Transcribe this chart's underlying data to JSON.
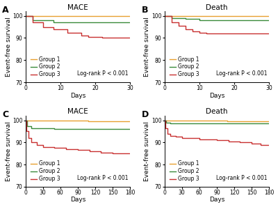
{
  "panels": [
    {
      "label": "A",
      "title": "MACE",
      "xmax": 30,
      "xticks": [
        0,
        10,
        20,
        30
      ],
      "groups": [
        {
          "name": "Group 1",
          "color": "#E8A030",
          "x": [
            0,
            30
          ],
          "y": [
            100,
            100
          ]
        },
        {
          "name": "Group 2",
          "color": "#3A8A3A",
          "x": [
            0,
            2,
            2,
            8,
            8,
            30
          ],
          "y": [
            100,
            100,
            98,
            98,
            97,
            97
          ]
        },
        {
          "name": "Group 3",
          "color": "#C83030",
          "x": [
            0,
            2,
            2,
            5,
            5,
            8,
            8,
            12,
            12,
            16,
            16,
            18,
            18,
            22,
            22,
            30
          ],
          "y": [
            100,
            100,
            97,
            97,
            95,
            95,
            94,
            94,
            92.5,
            92.5,
            91,
            91,
            90.5,
            90.5,
            90,
            90
          ]
        }
      ]
    },
    {
      "label": "B",
      "title": "Death",
      "xmax": 30,
      "xticks": [
        0,
        10,
        20,
        30
      ],
      "groups": [
        {
          "name": "Group 1",
          "color": "#E8A030",
          "x": [
            0,
            30
          ],
          "y": [
            100,
            100
          ]
        },
        {
          "name": "Group 2",
          "color": "#3A8A3A",
          "x": [
            0,
            2,
            2,
            6,
            6,
            10,
            10,
            30
          ],
          "y": [
            100,
            100,
            99,
            99,
            98.5,
            98.5,
            98,
            98
          ]
        },
        {
          "name": "Group 3",
          "color": "#C83030",
          "x": [
            0,
            2,
            2,
            4,
            4,
            6,
            6,
            8,
            8,
            10,
            10,
            12,
            12,
            30
          ],
          "y": [
            100,
            100,
            97,
            97,
            95.5,
            95.5,
            94,
            94,
            93,
            93,
            92.5,
            92.5,
            92,
            92
          ]
        }
      ]
    },
    {
      "label": "C",
      "title": "MACE",
      "xmax": 180,
      "xticks": [
        0,
        30,
        60,
        90,
        120,
        150,
        180
      ],
      "groups": [
        {
          "name": "Group 1",
          "color": "#E8A030",
          "x": [
            0,
            108,
            108,
            180
          ],
          "y": [
            100,
            100,
            99.5,
            99.5
          ]
        },
        {
          "name": "Group 2",
          "color": "#3A8A3A",
          "x": [
            0,
            3,
            3,
            10,
            10,
            50,
            50,
            180
          ],
          "y": [
            100,
            100,
            97.5,
            97.5,
            96.5,
            96.5,
            96,
            96
          ]
        },
        {
          "name": "Group 3",
          "color": "#C83030",
          "x": [
            0,
            2,
            2,
            5,
            5,
            10,
            10,
            20,
            20,
            30,
            30,
            50,
            50,
            70,
            70,
            90,
            90,
            110,
            110,
            130,
            130,
            150,
            150,
            180
          ],
          "y": [
            100,
            100,
            95,
            95,
            92,
            92,
            90,
            90,
            89,
            89,
            88,
            88,
            87.5,
            87.5,
            87,
            87,
            86.5,
            86.5,
            86,
            86,
            85.5,
            85.5,
            85,
            85
          ]
        }
      ]
    },
    {
      "label": "D",
      "title": "Death",
      "xmax": 180,
      "xticks": [
        0,
        30,
        60,
        90,
        120,
        150,
        180
      ],
      "groups": [
        {
          "name": "Group 1",
          "color": "#E8A030",
          "x": [
            0,
            108,
            108,
            180
          ],
          "y": [
            100,
            100,
            99.5,
            99.5
          ]
        },
        {
          "name": "Group 2",
          "color": "#3A8A3A",
          "x": [
            0,
            3,
            3,
            10,
            10,
            180
          ],
          "y": [
            100,
            100,
            99,
            99,
            98.5,
            98.5
          ]
        },
        {
          "name": "Group 3",
          "color": "#C83030",
          "x": [
            0,
            2,
            2,
            5,
            5,
            10,
            10,
            20,
            20,
            30,
            30,
            60,
            60,
            90,
            90,
            110,
            110,
            130,
            130,
            150,
            150,
            165,
            165,
            180
          ],
          "y": [
            100,
            100,
            96.5,
            96.5,
            94,
            94,
            93,
            93,
            92.5,
            92.5,
            92,
            92,
            91.5,
            91.5,
            91,
            91,
            90.5,
            90.5,
            90,
            90,
            89.5,
            89.5,
            89,
            89
          ]
        }
      ]
    }
  ],
  "ylim": [
    70,
    102
  ],
  "yticks": [
    70,
    80,
    90,
    100
  ],
  "ylabel": "Event-free survival",
  "xlabel": "Days",
  "logrank_text": "Log-rank P < 0.001",
  "background_color": "#ffffff",
  "legend_fontsize": 5.5,
  "axis_fontsize": 6.5,
  "title_fontsize": 7.5,
  "label_fontsize": 9,
  "tick_fontsize": 5.5,
  "line_width": 1.0
}
